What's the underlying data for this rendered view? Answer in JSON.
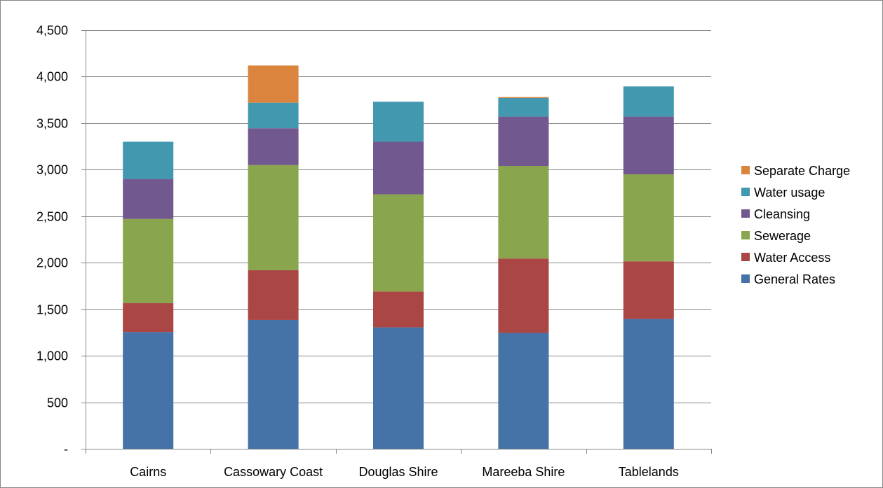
{
  "chart_data": {
    "type": "bar",
    "stacked": true,
    "title": "",
    "xlabel": "",
    "ylabel": "",
    "categories": [
      "Cairns",
      "Cassowary Coast",
      "Douglas Shire",
      "Mareeba Shire",
      "Tablelands"
    ],
    "series": [
      {
        "name": "General Rates",
        "color": "#4572A7",
        "values": [
          1255,
          1385,
          1305,
          1245,
          1395
        ]
      },
      {
        "name": "Water Access",
        "color": "#AA4643",
        "values": [
          310,
          535,
          385,
          800,
          620
        ]
      },
      {
        "name": "Sewerage",
        "color": "#89A54E",
        "values": [
          905,
          1130,
          1045,
          995,
          935
        ]
      },
      {
        "name": "Cleansing",
        "color": "#71588F",
        "values": [
          430,
          395,
          565,
          530,
          620
        ]
      },
      {
        "name": "Water usage",
        "color": "#4198AF",
        "values": [
          400,
          275,
          430,
          200,
          325
        ]
      },
      {
        "name": "Separate Charge",
        "color": "#DB843D",
        "values": [
          0,
          400,
          0,
          10,
          0
        ]
      }
    ],
    "ylim": [
      0,
      4500
    ],
    "yticks": [
      0,
      500,
      1000,
      1500,
      2000,
      2500,
      3000,
      3500,
      4000,
      4500
    ],
    "ytick_labels": [
      "-",
      "500",
      "1,000",
      "1,500",
      "2,000",
      "2,500",
      "3,000",
      "3,500",
      "4,000",
      "4,500"
    ],
    "grid": true,
    "legend_position": "right",
    "legend_order": [
      "Separate Charge",
      "Water usage",
      "Cleansing",
      "Sewerage",
      "Water Access",
      "General Rates"
    ]
  }
}
